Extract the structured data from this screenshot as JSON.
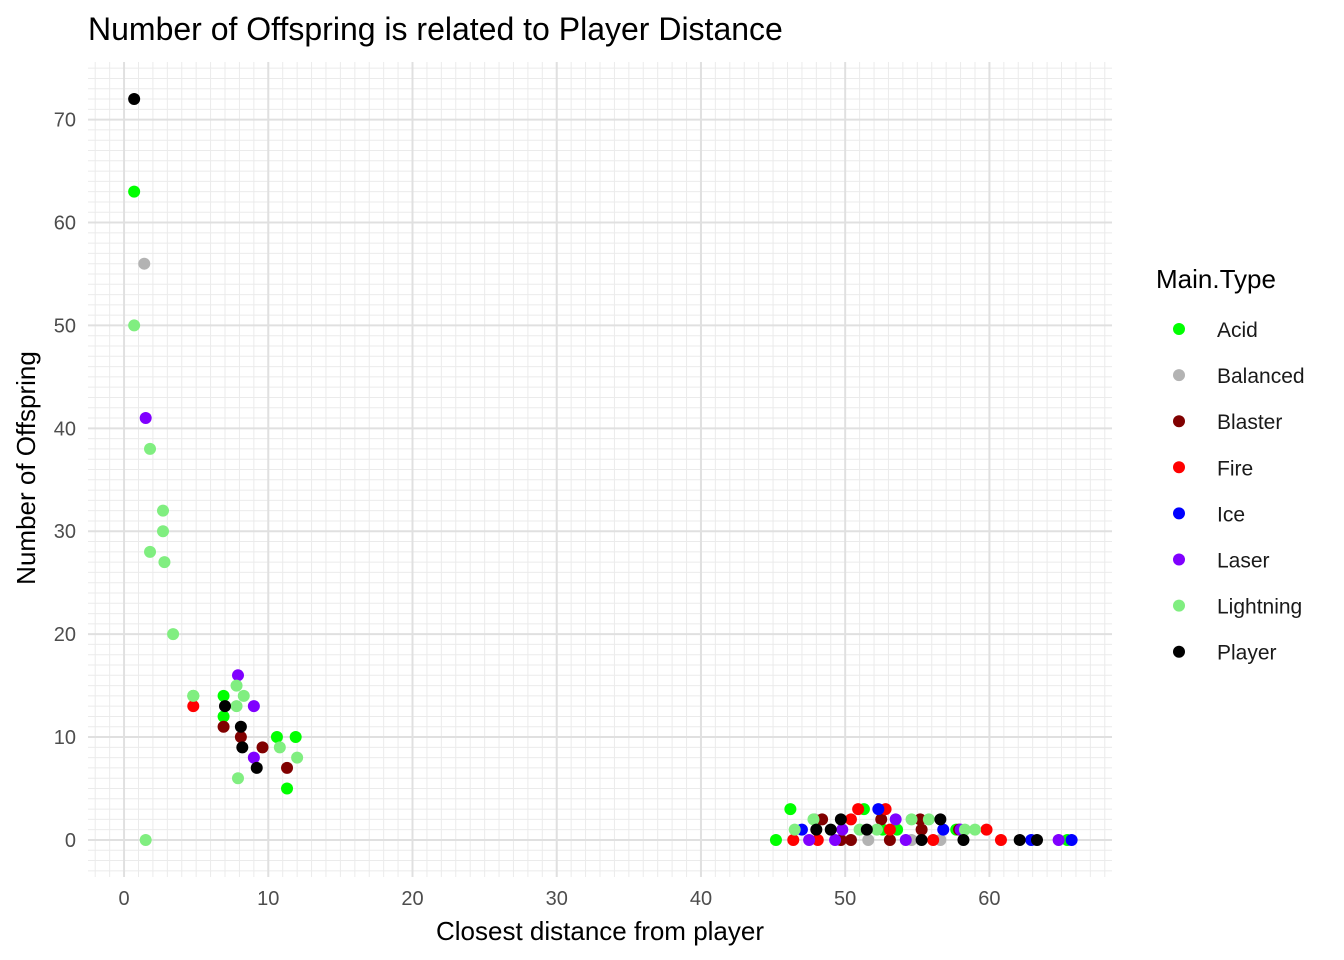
{
  "chart_data": {
    "type": "scatter",
    "title": "Number of Offspring is related to Player Distance",
    "xlabel": "Closest distance from player",
    "ylabel": "Number of Offspring",
    "xlim": [
      -2.5,
      68.5
    ],
    "ylim": [
      -3.6,
      75.6
    ],
    "x_ticks": [
      0,
      10,
      20,
      30,
      40,
      50,
      60
    ],
    "y_ticks": [
      0,
      10,
      20,
      30,
      40,
      50,
      60,
      70
    ],
    "grid": true,
    "legend": {
      "title": "Main.Type",
      "position": "right"
    },
    "series": [
      {
        "name": "Acid",
        "color": "#00ff00",
        "points": [
          [
            0.7,
            63
          ],
          [
            4.8,
            14
          ],
          [
            6.9,
            14
          ],
          [
            6.9,
            12
          ],
          [
            10.6,
            10
          ],
          [
            11.9,
            10
          ],
          [
            11.3,
            5
          ],
          [
            45.2,
            0
          ],
          [
            46.2,
            3
          ],
          [
            51.3,
            3
          ],
          [
            52.6,
            1
          ],
          [
            53.6,
            1
          ],
          [
            57.7,
            1
          ],
          [
            65.4,
            0
          ]
        ]
      },
      {
        "name": "Balanced",
        "color": "#b3b3b3",
        "points": [
          [
            1.4,
            56
          ],
          [
            47.9,
            2
          ],
          [
            51.6,
            0
          ],
          [
            54.6,
            0
          ],
          [
            56.6,
            0
          ]
        ]
      },
      {
        "name": "Blaster",
        "color": "#800000",
        "points": [
          [
            6.9,
            11
          ],
          [
            8.1,
            10
          ],
          [
            9.6,
            9
          ],
          [
            11.3,
            7
          ],
          [
            48.4,
            2
          ],
          [
            49.7,
            0
          ],
          [
            50.4,
            0
          ],
          [
            52.5,
            2
          ],
          [
            53.1,
            0
          ],
          [
            55.2,
            2
          ],
          [
            55.3,
            1
          ],
          [
            57.9,
            1
          ]
        ]
      },
      {
        "name": "Fire",
        "color": "#ff0000",
        "points": [
          [
            4.8,
            13
          ],
          [
            46.4,
            0
          ],
          [
            48.1,
            0
          ],
          [
            50.4,
            2
          ],
          [
            50.9,
            3
          ],
          [
            52.8,
            3
          ],
          [
            53.1,
            1
          ],
          [
            56.1,
            0
          ],
          [
            59.8,
            1
          ],
          [
            60.8,
            0
          ]
        ]
      },
      {
        "name": "Ice",
        "color": "#0000ff",
        "points": [
          [
            47.0,
            1
          ],
          [
            52.3,
            3
          ],
          [
            56.8,
            1
          ],
          [
            62.9,
            0
          ],
          [
            65.7,
            0
          ]
        ]
      },
      {
        "name": "Laser",
        "color": "#8000ff",
        "points": [
          [
            1.5,
            41
          ],
          [
            7.9,
            16
          ],
          [
            9.0,
            13
          ],
          [
            9.0,
            8
          ],
          [
            47.5,
            0
          ],
          [
            49.3,
            0
          ],
          [
            49.8,
            1
          ],
          [
            53.5,
            2
          ],
          [
            54.2,
            0
          ],
          [
            58.0,
            1
          ],
          [
            64.8,
            0
          ]
        ]
      },
      {
        "name": "Lightning",
        "color": "#80ee80",
        "points": [
          [
            0.7,
            50
          ],
          [
            1.8,
            38
          ],
          [
            2.7,
            32
          ],
          [
            2.7,
            30
          ],
          [
            1.8,
            28
          ],
          [
            2.8,
            27
          ],
          [
            3.4,
            20
          ],
          [
            4.8,
            14
          ],
          [
            7.8,
            15
          ],
          [
            7.8,
            13
          ],
          [
            8.3,
            14
          ],
          [
            10.8,
            9
          ],
          [
            12.0,
            8
          ],
          [
            7.9,
            6
          ],
          [
            1.5,
            0
          ],
          [
            46.5,
            1
          ],
          [
            47.8,
            2
          ],
          [
            51.0,
            1
          ],
          [
            52.2,
            1
          ],
          [
            54.6,
            2
          ],
          [
            55.8,
            2
          ],
          [
            58.3,
            1
          ],
          [
            59.0,
            1
          ]
        ]
      },
      {
        "name": "Player",
        "color": "#000000",
        "points": [
          [
            0.7,
            72
          ],
          [
            7.0,
            13
          ],
          [
            8.1,
            11
          ],
          [
            8.2,
            9
          ],
          [
            9.2,
            7
          ],
          [
            48.0,
            1
          ],
          [
            49.0,
            1
          ],
          [
            49.7,
            2
          ],
          [
            51.5,
            1
          ],
          [
            55.3,
            0
          ],
          [
            56.6,
            2
          ],
          [
            58.2,
            0
          ],
          [
            62.1,
            0
          ],
          [
            63.3,
            0
          ]
        ]
      }
    ]
  }
}
